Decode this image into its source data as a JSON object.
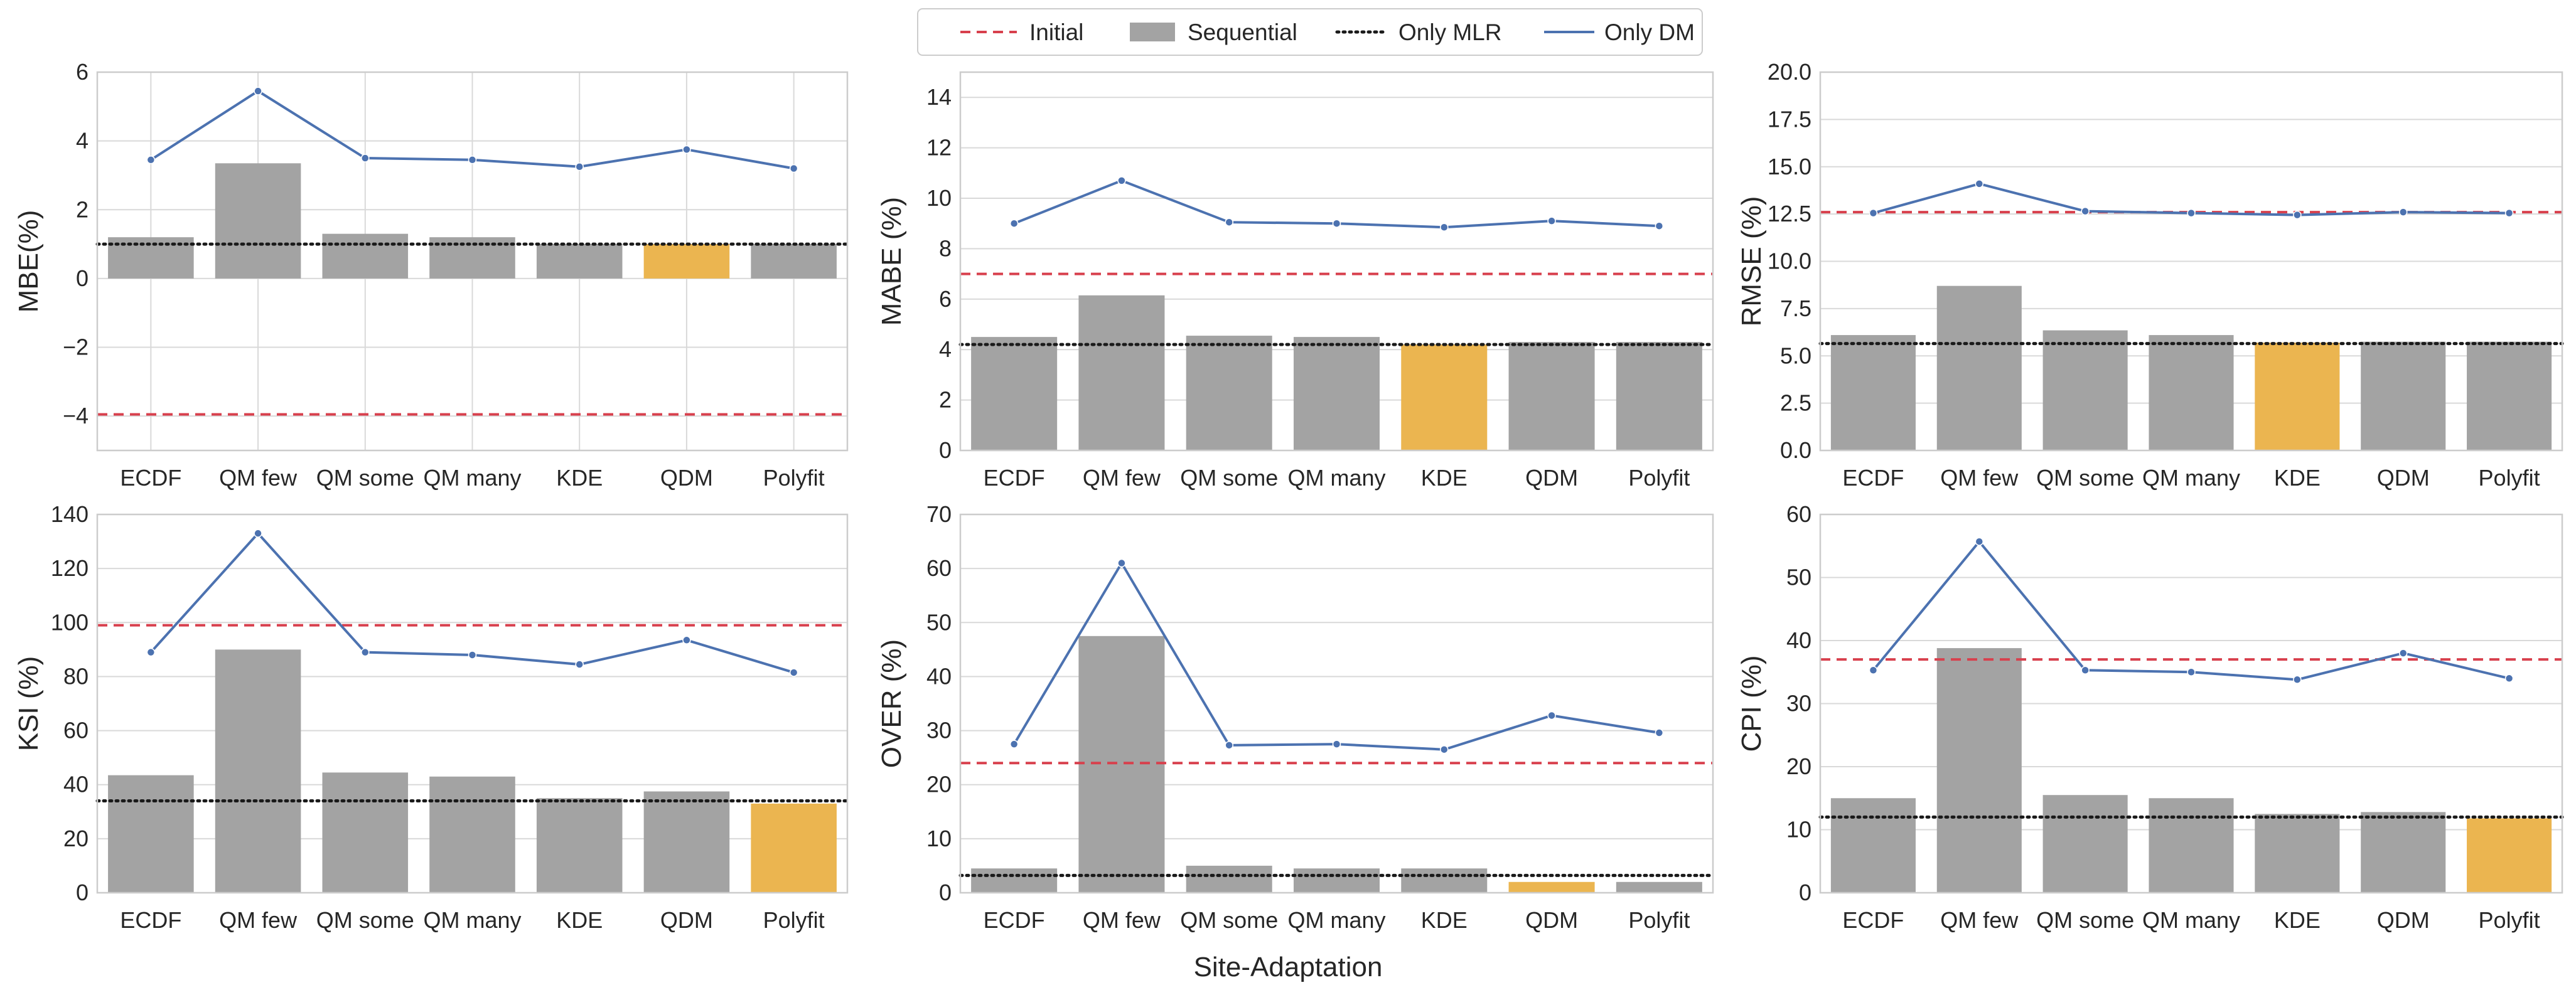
{
  "figure": {
    "xlabel": "Site-Adaptation",
    "legend": [
      {
        "key": "initial",
        "label": "Initial"
      },
      {
        "key": "sequential",
        "label": "Sequential"
      },
      {
        "key": "mlr",
        "label": "Only MLR"
      },
      {
        "key": "dm",
        "label": "Only DM"
      }
    ]
  },
  "colors": {
    "bar": "#a3a3a3",
    "highlight": "#ebb550",
    "initial": "#d8404d",
    "mlr": "#1a1a1a",
    "dm": "#4c72b0",
    "grid": "#d9d9d9",
    "frame": "#cccccc"
  },
  "chart_data": [
    {
      "type": "bar",
      "ylabel": "MBE(%)",
      "categories": [
        "ECDF",
        "QM few",
        "QM some",
        "QM many",
        "KDE",
        "QDM",
        "Polyfit"
      ],
      "ylim": [
        -5,
        6
      ],
      "yticks": [
        -4,
        -2,
        0,
        2,
        4,
        6
      ],
      "ytick_labels": [
        "−4",
        "−2",
        "0",
        "2",
        "4",
        "6"
      ],
      "xgrid": true,
      "series": [
        {
          "name": "Sequential",
          "values": [
            1.2,
            3.35,
            1.3,
            1.2,
            1.0,
            1.0,
            1.0
          ]
        }
      ],
      "highlight_index": 5,
      "initial": -3.95,
      "only_mlr": 1.0,
      "only_dm": [
        3.45,
        5.45,
        3.5,
        3.45,
        3.25,
        3.75,
        3.2
      ]
    },
    {
      "type": "bar",
      "ylabel": "MABE (%)",
      "categories": [
        "ECDF",
        "QM few",
        "QM some",
        "QM many",
        "KDE",
        "QDM",
        "Polyfit"
      ],
      "ylim": [
        0,
        15
      ],
      "yticks": [
        0,
        2,
        4,
        6,
        8,
        10,
        12,
        14
      ],
      "ytick_labels": [
        "0",
        "2",
        "4",
        "6",
        "8",
        "10",
        "12",
        "14"
      ],
      "xgrid": false,
      "series": [
        {
          "name": "Sequential",
          "values": [
            4.5,
            6.15,
            4.55,
            4.5,
            4.2,
            4.3,
            4.3
          ]
        }
      ],
      "highlight_index": 4,
      "initial": 7.0,
      "only_mlr": 4.2,
      "only_dm": [
        9.0,
        10.7,
        9.05,
        9.0,
        8.85,
        9.1,
        8.9
      ]
    },
    {
      "type": "bar",
      "ylabel": "RMSE (%)",
      "categories": [
        "ECDF",
        "QM few",
        "QM some",
        "QM many",
        "KDE",
        "QDM",
        "Polyfit"
      ],
      "ylim": [
        0,
        20
      ],
      "yticks": [
        0,
        2.5,
        5,
        7.5,
        10,
        12.5,
        15,
        17.5,
        20
      ],
      "ytick_labels": [
        "0.0",
        "2.5",
        "5.0",
        "7.5",
        "10.0",
        "12.5",
        "15.0",
        "17.5",
        "20.0"
      ],
      "xgrid": false,
      "series": [
        {
          "name": "Sequential",
          "values": [
            6.1,
            8.7,
            6.35,
            6.1,
            5.7,
            5.75,
            5.75
          ]
        }
      ],
      "highlight_index": 4,
      "initial": 12.6,
      "only_mlr": 5.65,
      "only_dm": [
        12.55,
        14.1,
        12.65,
        12.55,
        12.45,
        12.6,
        12.55
      ]
    },
    {
      "type": "bar",
      "ylabel": "KSI (%)",
      "categories": [
        "ECDF",
        "QM few",
        "QM some",
        "QM many",
        "KDE",
        "QDM",
        "Polyfit"
      ],
      "ylim": [
        0,
        140
      ],
      "yticks": [
        0,
        20,
        40,
        60,
        80,
        100,
        120,
        140
      ],
      "ytick_labels": [
        "0",
        "20",
        "40",
        "60",
        "80",
        "100",
        "120",
        "140"
      ],
      "xgrid": false,
      "series": [
        {
          "name": "Sequential",
          "values": [
            43.5,
            90,
            44.5,
            43,
            35,
            37.5,
            33
          ]
        }
      ],
      "highlight_index": 6,
      "initial": 99,
      "only_mlr": 34,
      "only_dm": [
        89,
        133,
        89,
        88,
        84.5,
        93.5,
        81.5
      ]
    },
    {
      "type": "bar",
      "ylabel": "OVER (%)",
      "categories": [
        "ECDF",
        "QM few",
        "QM some",
        "QM many",
        "KDE",
        "QDM",
        "Polyfit"
      ],
      "ylim": [
        0,
        70
      ],
      "yticks": [
        0,
        10,
        20,
        30,
        40,
        50,
        60,
        70
      ],
      "ytick_labels": [
        "0",
        "10",
        "20",
        "30",
        "40",
        "50",
        "60",
        "70"
      ],
      "xgrid": false,
      "series": [
        {
          "name": "Sequential",
          "values": [
            4.5,
            47.5,
            5.0,
            4.5,
            4.5,
            2.0,
            2.0
          ]
        }
      ],
      "highlight_index": 5,
      "initial": 24,
      "only_mlr": 3.2,
      "only_dm": [
        27.5,
        61,
        27.3,
        27.5,
        26.5,
        32.8,
        29.6
      ]
    },
    {
      "type": "bar",
      "ylabel": "CPI (%)",
      "categories": [
        "ECDF",
        "QM few",
        "QM some",
        "QM many",
        "KDE",
        "QDM",
        "Polyfit"
      ],
      "ylim": [
        0,
        60
      ],
      "yticks": [
        0,
        10,
        20,
        30,
        40,
        50,
        60
      ],
      "ytick_labels": [
        "0",
        "10",
        "20",
        "30",
        "40",
        "50",
        "60"
      ],
      "xgrid": false,
      "series": [
        {
          "name": "Sequential",
          "values": [
            15,
            38.8,
            15.5,
            15,
            12.5,
            12.8,
            11.8
          ]
        }
      ],
      "highlight_index": 6,
      "initial": 37,
      "only_mlr": 12,
      "only_dm": [
        35.3,
        55.7,
        35.3,
        35.0,
        33.8,
        38.0,
        34.0
      ]
    }
  ]
}
